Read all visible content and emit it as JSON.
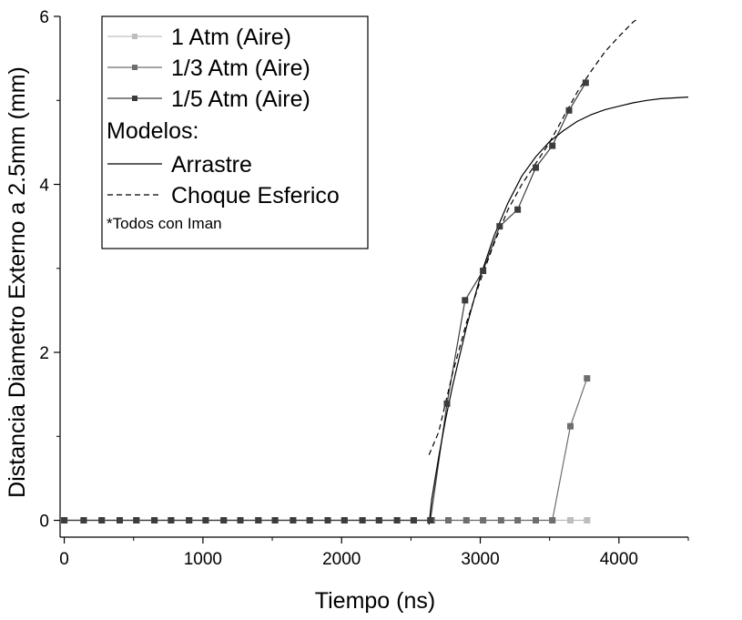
{
  "chart_data": {
    "type": "line",
    "xlabel": "Tiempo (ns)",
    "ylabel": "Distancia Diametro Externo a 2.5mm (mm)",
    "xlim": [
      -30,
      4500
    ],
    "ylim": [
      -0.2,
      6
    ],
    "xticks": [
      0,
      1000,
      2000,
      3000,
      4000
    ],
    "yticks": [
      0,
      2,
      4,
      6
    ],
    "grid": false,
    "legend": {
      "placement": "top-left",
      "section_label": "Modelos:",
      "note": "*Todos con Iman"
    },
    "series": [
      {
        "name": "1 Atm (Aire)",
        "color": "#bdbdbd",
        "marker": "square",
        "x": [
          0,
          140,
          270,
          400,
          520,
          650,
          770,
          900,
          1020,
          1150,
          1270,
          1400,
          1520,
          1650,
          1770,
          1900,
          2020,
          2150,
          2270,
          2400,
          2520,
          2650,
          2770,
          2900,
          3020,
          3150,
          3270,
          3400,
          3520,
          3650,
          3770
        ],
        "y": [
          0,
          0,
          0,
          0,
          0,
          0,
          0,
          0,
          0,
          0,
          0,
          0,
          0,
          0,
          0,
          0,
          0,
          0,
          0,
          0,
          0,
          0,
          0,
          0,
          0,
          0,
          0,
          0,
          0,
          0,
          0
        ]
      },
      {
        "name": "1/3 Atm (Aire)",
        "color": "#6e6e6e",
        "marker": "square",
        "x": [
          0,
          140,
          270,
          400,
          520,
          650,
          770,
          900,
          1020,
          1150,
          1270,
          1400,
          1520,
          1650,
          1770,
          1900,
          2020,
          2150,
          2270,
          2400,
          2520,
          2650,
          2770,
          2900,
          3020,
          3150,
          3270,
          3400,
          3520,
          3650,
          3770
        ],
        "y": [
          0,
          0,
          0,
          0,
          0,
          0,
          0,
          0,
          0,
          0,
          0,
          0,
          0,
          0,
          0,
          0,
          0,
          0,
          0,
          0,
          0,
          0,
          0,
          0,
          0,
          0,
          0,
          0,
          0,
          1.12,
          1.69
        ]
      },
      {
        "name": "1/5 Atm (Aire)",
        "color": "#3c3c3c",
        "marker": "square",
        "x": [
          0,
          140,
          270,
          400,
          520,
          650,
          770,
          900,
          1020,
          1150,
          1270,
          1400,
          1520,
          1650,
          1770,
          1900,
          2020,
          2150,
          2270,
          2400,
          2520,
          2640,
          2760,
          2890,
          3020,
          3140,
          3270,
          3400,
          3520,
          3640,
          3760
        ],
        "y": [
          0,
          0,
          0,
          0,
          0,
          0,
          0,
          0,
          0,
          0,
          0,
          0,
          0,
          0,
          0,
          0,
          0,
          0,
          0,
          0,
          0,
          0,
          1.39,
          2.62,
          2.97,
          3.5,
          3.7,
          4.2,
          4.46,
          4.88,
          5.21
        ]
      },
      {
        "name": "Arrastre",
        "color": "#000000",
        "style": "solid",
        "x": [
          2630,
          2650,
          2700,
          2750,
          2800,
          2900,
          3000,
          3100,
          3200,
          3300,
          3400,
          3500,
          3600,
          3700,
          3800,
          3900,
          4000,
          4100,
          4200,
          4300,
          4400,
          4500
        ],
        "y": [
          -0.05,
          0.25,
          0.75,
          1.2,
          1.6,
          2.3,
          2.9,
          3.39,
          3.78,
          4.1,
          4.33,
          4.51,
          4.64,
          4.75,
          4.83,
          4.89,
          4.93,
          4.97,
          5.0,
          5.02,
          5.03,
          5.04
        ]
      },
      {
        "name": "Choque Esferico",
        "color": "#000000",
        "style": "dashed",
        "x": [
          2630,
          2700,
          2800,
          2900,
          3000,
          3100,
          3200,
          3300,
          3400,
          3500,
          3600,
          3700,
          3800,
          3900,
          4000,
          4100,
          4140
        ],
        "y": [
          0.78,
          1.05,
          1.75,
          2.35,
          2.85,
          3.3,
          3.7,
          4.0,
          4.25,
          4.5,
          4.8,
          5.1,
          5.35,
          5.58,
          5.76,
          5.93,
          5.98
        ]
      }
    ]
  }
}
